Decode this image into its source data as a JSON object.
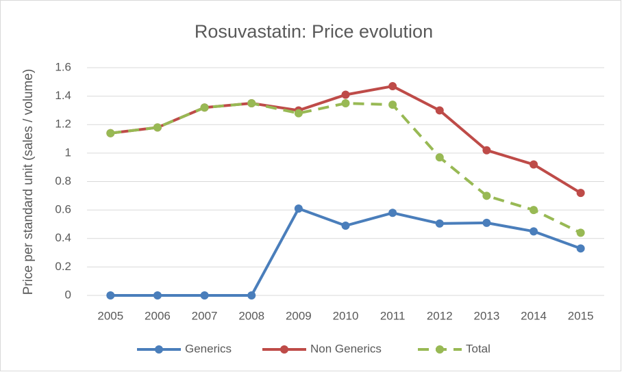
{
  "chart_data": {
    "type": "line",
    "title": "Rosuvastatin: Price evolution",
    "y_label": "Price per standard unit (sales / volume)",
    "categories": [
      "2005",
      "2006",
      "2007",
      "2008",
      "2009",
      "2010",
      "2011",
      "2012",
      "2013",
      "2014",
      "2015"
    ],
    "series": [
      {
        "name": "Generics",
        "color": "#4a7ebb",
        "values": [
          0,
          0,
          0,
          0,
          0.61,
          0.49,
          0.58,
          0.505,
          0.51,
          0.45,
          0.33
        ]
      },
      {
        "name": "Non Generics",
        "color": "#be4b48",
        "values": [
          1.14,
          1.18,
          1.32,
          1.35,
          1.3,
          1.41,
          1.47,
          1.3,
          1.02,
          0.92,
          0.72
        ]
      },
      {
        "name": "Total",
        "color": "#98b954",
        "dashed": true,
        "values": [
          1.14,
          1.18,
          1.32,
          1.35,
          1.28,
          1.35,
          1.34,
          0.97,
          0.7,
          0.6,
          0.44
        ]
      }
    ],
    "ylim": [
      0,
      1.6
    ],
    "yticks": [
      0,
      0.2,
      0.4,
      0.6,
      0.8,
      1,
      1.2,
      1.4,
      1.6
    ],
    "grid": true,
    "legend": "bottom"
  }
}
